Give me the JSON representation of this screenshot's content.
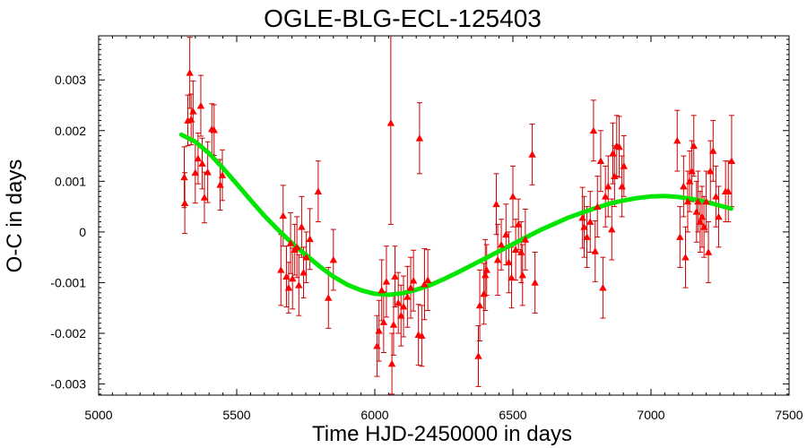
{
  "chart_data": {
    "type": "scatter",
    "title": "OGLE-BLG-ECL-125403",
    "xlabel": "Time HJD-2450000 in days",
    "ylabel": "O-C in days",
    "xlim": [
      5000,
      7500
    ],
    "ylim": [
      -0.00322,
      0.00387
    ],
    "xticks": [
      5000,
      5500,
      6000,
      6500,
      7000,
      7500
    ],
    "yticks": [
      -0.003,
      -0.002,
      -0.001,
      0,
      0.001,
      0.002,
      0.003
    ],
    "ytick_labels": [
      "-0.003",
      "-0.002",
      "-0.001",
      "0",
      "0.001",
      "0.002",
      "0.003"
    ],
    "grid": false,
    "marker_color": "#ff0000",
    "errorbar_color": "#cc0000",
    "fit_color": "#00e600",
    "series": [
      {
        "points": [
          {
            "x": 5310,
            "y": 0.00108,
            "err": 0.0006
          },
          {
            "x": 5312,
            "y": 0.00057,
            "err": 0.0006
          },
          {
            "x": 5323,
            "y": 0.0022,
            "err": 0.0005
          },
          {
            "x": 5330,
            "y": 0.00314,
            "err": 0.0007
          },
          {
            "x": 5335,
            "y": 0.00222,
            "err": 0.0005
          },
          {
            "x": 5342,
            "y": 0.00238,
            "err": 0.0006
          },
          {
            "x": 5350,
            "y": 0.00117,
            "err": 0.0006
          },
          {
            "x": 5360,
            "y": 0.00145,
            "err": 0.0005
          },
          {
            "x": 5370,
            "y": 0.00249,
            "err": 0.0006
          },
          {
            "x": 5375,
            "y": 0.00135,
            "err": 0.0005
          },
          {
            "x": 5383,
            "y": 0.00068,
            "err": 0.0005
          },
          {
            "x": 5395,
            "y": 0.00118,
            "err": 0.0006
          },
          {
            "x": 5410,
            "y": 0.00203,
            "err": 0.0005
          },
          {
            "x": 5418,
            "y": 0.00201,
            "err": 0.0005
          },
          {
            "x": 5440,
            "y": 0.00093,
            "err": 0.0005
          },
          {
            "x": 5448,
            "y": 0.00112,
            "err": 0.0005
          },
          {
            "x": 5660,
            "y": -0.00075,
            "err": 0.0007
          },
          {
            "x": 5668,
            "y": 0.00032,
            "err": 0.0006
          },
          {
            "x": 5680,
            "y": -0.00088,
            "err": 0.0006
          },
          {
            "x": 5688,
            "y": -0.0011,
            "err": 0.0005
          },
          {
            "x": 5695,
            "y": -0.00022,
            "err": 0.0006
          },
          {
            "x": 5702,
            "y": -0.00092,
            "err": 0.0006
          },
          {
            "x": 5710,
            "y": -0.00035,
            "err": 0.0005
          },
          {
            "x": 5718,
            "y": -0.0003,
            "err": 0.0006
          },
          {
            "x": 5725,
            "y": -0.00105,
            "err": 0.0006
          },
          {
            "x": 5735,
            "y": 0.0001,
            "err": 0.0006
          },
          {
            "x": 5742,
            "y": -0.0008,
            "err": 0.0005
          },
          {
            "x": 5752,
            "y": -0.0005,
            "err": 0.0005
          },
          {
            "x": 5765,
            "y": -0.00014,
            "err": 0.0006
          },
          {
            "x": 5795,
            "y": 0.0008,
            "err": 0.0006
          },
          {
            "x": 5832,
            "y": -0.0013,
            "err": 0.0006
          },
          {
            "x": 5850,
            "y": -0.00055,
            "err": 0.0006
          },
          {
            "x": 6008,
            "y": -0.00225,
            "err": 0.0006
          },
          {
            "x": 6015,
            "y": -0.00195,
            "err": 0.0006
          },
          {
            "x": 6025,
            "y": -0.00115,
            "err": 0.0006
          },
          {
            "x": 6032,
            "y": -0.00178,
            "err": 0.0006
          },
          {
            "x": 6042,
            "y": -0.00098,
            "err": 0.0007
          },
          {
            "x": 6058,
            "y": 0.00215,
            "err": 0.002
          },
          {
            "x": 6062,
            "y": -0.0026,
            "err": 0.0006
          },
          {
            "x": 6068,
            "y": -0.00183,
            "err": 0.0006
          },
          {
            "x": 6073,
            "y": -0.00088,
            "err": 0.0006
          },
          {
            "x": 6085,
            "y": -0.0014,
            "err": 0.0006
          },
          {
            "x": 6095,
            "y": -0.00165,
            "err": 0.0006
          },
          {
            "x": 6104,
            "y": -0.00147,
            "err": 0.0006
          },
          {
            "x": 6118,
            "y": -0.00128,
            "err": 0.0006
          },
          {
            "x": 6130,
            "y": -0.0011,
            "err": 0.0006
          },
          {
            "x": 6140,
            "y": -0.00096,
            "err": 0.0006
          },
          {
            "x": 6158,
            "y": -0.00203,
            "err": 0.0006
          },
          {
            "x": 6162,
            "y": 0.00185,
            "err": 0.0007
          },
          {
            "x": 6170,
            "y": -0.00205,
            "err": 0.0006
          },
          {
            "x": 6180,
            "y": -0.00103,
            "err": 0.0007
          },
          {
            "x": 6192,
            "y": -0.00095,
            "err": 0.0006
          },
          {
            "x": 6375,
            "y": -0.00245,
            "err": 0.0006
          },
          {
            "x": 6380,
            "y": -0.00145,
            "err": 0.0007
          },
          {
            "x": 6395,
            "y": -0.00122,
            "err": 0.0006
          },
          {
            "x": 6400,
            "y": -0.00085,
            "err": 0.0007
          },
          {
            "x": 6405,
            "y": -0.00075,
            "err": 0.0005
          },
          {
            "x": 6440,
            "y": 0.00055,
            "err": 0.0006
          },
          {
            "x": 6445,
            "y": -0.00055,
            "err": 0.0007
          },
          {
            "x": 6458,
            "y": -0.00025,
            "err": 0.0005
          },
          {
            "x": 6475,
            "y": -5e-05,
            "err": 0.0006
          },
          {
            "x": 6485,
            "y": -0.0006,
            "err": 0.0006
          },
          {
            "x": 6495,
            "y": -0.0009,
            "err": 0.0006
          },
          {
            "x": 6500,
            "y": 0.0007,
            "err": 0.0006
          },
          {
            "x": 6510,
            "y": -0.00035,
            "err": 0.0006
          },
          {
            "x": 6520,
            "y": 0.00015,
            "err": 0.0005
          },
          {
            "x": 6530,
            "y": -0.0004,
            "err": 0.0006
          },
          {
            "x": 6535,
            "y": -0.00085,
            "err": 0.0006
          },
          {
            "x": 6545,
            "y": -0.00015,
            "err": 0.0006
          },
          {
            "x": 6570,
            "y": 0.00153,
            "err": 0.0006
          },
          {
            "x": 6580,
            "y": -0.001,
            "err": 0.0006
          },
          {
            "x": 6752,
            "y": 0.00028,
            "err": 0.0006
          },
          {
            "x": 6758,
            "y": 0.0001,
            "err": 0.0006
          },
          {
            "x": 6768,
            "y": -0.0001,
            "err": 0.0006
          },
          {
            "x": 6780,
            "y": 0.0002,
            "err": 0.0006
          },
          {
            "x": 6792,
            "y": 0.002,
            "err": 0.0006
          },
          {
            "x": 6798,
            "y": -0.00038,
            "err": 0.0006
          },
          {
            "x": 6806,
            "y": 0.0005,
            "err": 0.0006
          },
          {
            "x": 6818,
            "y": 0.0014,
            "err": 0.0006
          },
          {
            "x": 6826,
            "y": -0.0011,
            "err": 0.0006
          },
          {
            "x": 6835,
            "y": 0.0007,
            "err": 0.0006
          },
          {
            "x": 6845,
            "y": 0.0009,
            "err": 0.0006
          },
          {
            "x": 6858,
            "y": 5e-05,
            "err": 0.0006
          },
          {
            "x": 6862,
            "y": 0.00155,
            "err": 0.0006
          },
          {
            "x": 6868,
            "y": 0.0011,
            "err": 0.0006
          },
          {
            "x": 6876,
            "y": 0.0017,
            "err": 0.0006
          },
          {
            "x": 6885,
            "y": 0.00168,
            "err": 0.0006
          },
          {
            "x": 6895,
            "y": 0.0009,
            "err": 0.0006
          },
          {
            "x": 6902,
            "y": 0.0013,
            "err": 0.0006
          },
          {
            "x": 7095,
            "y": 0.0018,
            "err": 0.0006
          },
          {
            "x": 7105,
            "y": -0.0001,
            "err": 0.0006
          },
          {
            "x": 7118,
            "y": 0.0009,
            "err": 0.0006
          },
          {
            "x": 7125,
            "y": -0.0005,
            "err": 0.0006
          },
          {
            "x": 7133,
            "y": 0.0006,
            "err": 0.0006
          },
          {
            "x": 7140,
            "y": 0.001,
            "err": 0.0006
          },
          {
            "x": 7148,
            "y": 0.0012,
            "err": 0.0006
          },
          {
            "x": 7155,
            "y": 0.0017,
            "err": 0.0006
          },
          {
            "x": 7165,
            "y": 0.0004,
            "err": 0.0006
          },
          {
            "x": 7170,
            "y": 0.0006,
            "err": 0.0006
          },
          {
            "x": 7178,
            "y": 0.0002,
            "err": 0.0006
          },
          {
            "x": 7185,
            "y": 0.0003,
            "err": 0.0006
          },
          {
            "x": 7192,
            "y": 0.0001,
            "err": 0.0006
          },
          {
            "x": 7200,
            "y": 0.0006,
            "err": 0.0006
          },
          {
            "x": 7208,
            "y": -0.0004,
            "err": 0.0006
          },
          {
            "x": 7215,
            "y": 0.0012,
            "err": 0.0006
          },
          {
            "x": 7225,
            "y": 0.0016,
            "err": 0.0006
          },
          {
            "x": 7235,
            "y": 0.0007,
            "err": 0.0006
          },
          {
            "x": 7245,
            "y": 0.0003,
            "err": 0.0006
          },
          {
            "x": 7270,
            "y": 0.0008,
            "err": 0.0006
          },
          {
            "x": 7280,
            "y": 0.0008,
            "err": 0.0006
          },
          {
            "x": 7292,
            "y": 0.0014,
            "err": 0.0009
          }
        ]
      }
    ],
    "fit": {
      "x": [
        5300,
        5350,
        5400,
        5450,
        5500,
        5550,
        5600,
        5650,
        5700,
        5750,
        5800,
        5850,
        5900,
        5950,
        6000,
        6050,
        6100,
        6150,
        6200,
        6250,
        6300,
        6350,
        6400,
        6450,
        6500,
        6550,
        6600,
        6650,
        6700,
        6750,
        6800,
        6850,
        6900,
        6950,
        7000,
        7050,
        7100,
        7150,
        7200,
        7250,
        7290
      ],
      "y": [
        0.00192,
        0.00178,
        0.00155,
        0.00126,
        0.00095,
        0.00063,
        0.00032,
        4e-05,
        -0.00022,
        -0.00045,
        -0.00068,
        -0.00088,
        -0.00104,
        -0.00115,
        -0.00122,
        -0.00124,
        -0.00121,
        -0.00114,
        -0.00105,
        -0.00093,
        -0.0008,
        -0.00066,
        -0.00052,
        -0.00038,
        -0.00024,
        -0.0001,
        4e-05,
        0.00016,
        0.00028,
        0.00038,
        0.00047,
        0.00056,
        0.00062,
        0.00067,
        0.0007,
        0.00071,
        0.00069,
        0.00065,
        0.00059,
        0.00052,
        0.00046
      ]
    }
  }
}
